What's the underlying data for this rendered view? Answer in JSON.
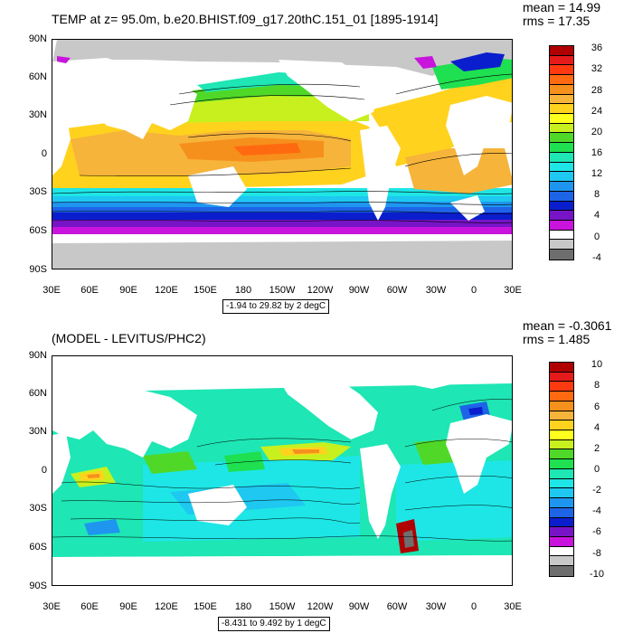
{
  "panels": [
    {
      "title": "TEMP at z=  95.0m, b.e20.BHIST.f09_g17.20thC.151_01 [1895-1914]",
      "mean_label": "mean = 14.99",
      "rms_label": "rms = 17.35",
      "range_label": "-1.94 to 29.82 by 2 degC",
      "lat_labels": [
        "90N",
        "60N",
        "30N",
        "0",
        "30S",
        "60S",
        "90S"
      ],
      "lon_labels": [
        "30E",
        "60E",
        "90E",
        "120E",
        "150E",
        "180",
        "150W",
        "120W",
        "90W",
        "60W",
        "30W",
        "0",
        "30E"
      ],
      "colorbar_labels": [
        "36",
        "32",
        "28",
        "24",
        "20",
        "16",
        "12",
        "8",
        "4",
        "0",
        "-4"
      ],
      "colorbar_colors": [
        "#b00000",
        "#e51a1a",
        "#ff3a10",
        "#ff6a10",
        "#f6901c",
        "#f6b43a",
        "#ffd21e",
        "#ffff1e",
        "#c8f01e",
        "#50d828",
        "#1ee050",
        "#1ee6b4",
        "#1ee6e6",
        "#1ec8f0",
        "#1e96f0",
        "#1e64e6",
        "#0a1ecd",
        "#7814c8",
        "#c814dc",
        "#ffffff",
        "#c8c8c8",
        "#6e6e6e"
      ]
    },
    {
      "title": "(MODEL - LEVITUS/PHC2)",
      "mean_label": "mean = -0.3061",
      "rms_label": "rms = 1.485",
      "range_label": "-8.431 to 9.492 by 1 degC",
      "lat_labels": [
        "90N",
        "60N",
        "30N",
        "0",
        "30S",
        "60S",
        "90S"
      ],
      "lon_labels": [
        "30E",
        "60E",
        "90E",
        "120E",
        "150E",
        "180",
        "150W",
        "120W",
        "90W",
        "60W",
        "30W",
        "0",
        "30E"
      ],
      "colorbar_labels": [
        "10",
        "8",
        "6",
        "4",
        "2",
        "0",
        "-2",
        "-4",
        "-6",
        "-8",
        "-10"
      ],
      "colorbar_colors": [
        "#b00000",
        "#e51a1a",
        "#ff3a10",
        "#ff6a10",
        "#f6901c",
        "#f6b43a",
        "#ffd21e",
        "#ffff1e",
        "#c8f01e",
        "#50d828",
        "#1ee050",
        "#1ee6b4",
        "#1ee6e6",
        "#1ec8f0",
        "#1e96f0",
        "#1e64e6",
        "#0a1ecd",
        "#7814c8",
        "#c814dc",
        "#ffffff",
        "#c8c8c8",
        "#6e6e6e"
      ]
    }
  ]
}
